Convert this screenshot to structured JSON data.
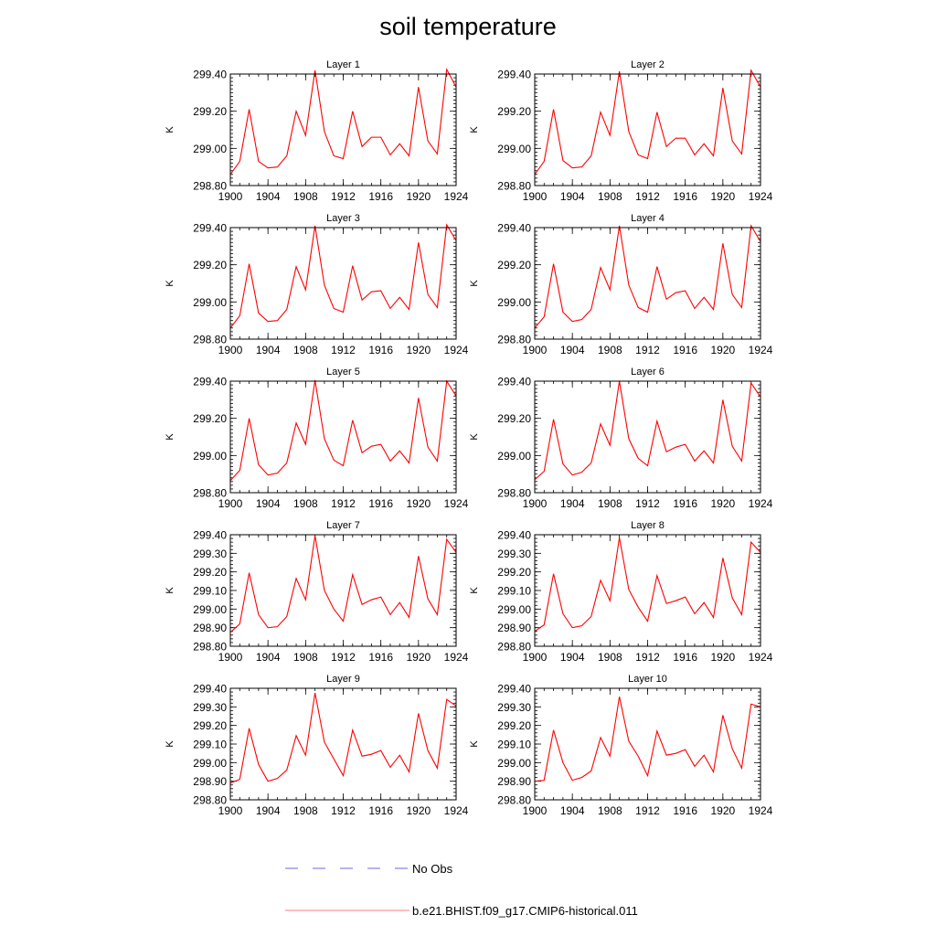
{
  "figure": {
    "title": "soil temperature"
  },
  "legend": [
    {
      "label": "No Obs",
      "color": "#6b6bd6",
      "style": "dashed"
    },
    {
      "label": "b.e21.BHIST.f09_g17.CMIP6-historical.011",
      "color": "#ff7f7f",
      "style": "solid"
    }
  ],
  "chart_data": [
    {
      "type": "line",
      "title": "Layer 1",
      "ylabel": "K",
      "xlim": [
        1900,
        1924
      ],
      "ylim": [
        298.8,
        299.4
      ],
      "xticks": [
        "1900",
        "1904",
        "1908",
        "1912",
        "1916",
        "1920",
        "1924"
      ],
      "yticks": [
        "298.80",
        "299.00",
        "299.20",
        "299.40"
      ],
      "color": "#ff0000",
      "x": [
        1900,
        1901,
        1902,
        1903,
        1904,
        1905,
        1906,
        1907,
        1908,
        1909,
        1910,
        1911,
        1912,
        1913,
        1914,
        1915,
        1916,
        1917,
        1918,
        1919,
        1920,
        1921,
        1922,
        1923,
        1924
      ],
      "series": [
        {
          "values": [
            298.86,
            298.93,
            299.21,
            298.93,
            298.895,
            298.9,
            298.96,
            299.2,
            299.07,
            299.42,
            299.09,
            298.96,
            298.945,
            299.2,
            299.01,
            299.06,
            299.06,
            298.965,
            299.025,
            298.96,
            299.33,
            299.04,
            298.97,
            299.425,
            299.33
          ]
        }
      ]
    },
    {
      "type": "line",
      "title": "Layer 2",
      "ylabel": "K",
      "xlim": [
        1900,
        1924
      ],
      "ylim": [
        298.8,
        299.4
      ],
      "xticks": [
        "1900",
        "1904",
        "1908",
        "1912",
        "1916",
        "1920",
        "1924"
      ],
      "yticks": [
        "298.80",
        "299.00",
        "299.20",
        "299.40"
      ],
      "color": "#ff0000",
      "x": [
        1900,
        1901,
        1902,
        1903,
        1904,
        1905,
        1906,
        1907,
        1908,
        1909,
        1910,
        1911,
        1912,
        1913,
        1914,
        1915,
        1916,
        1917,
        1918,
        1919,
        1920,
        1921,
        1922,
        1923,
        1924
      ],
      "series": [
        {
          "values": [
            298.86,
            298.93,
            299.21,
            298.935,
            298.895,
            298.9,
            298.96,
            299.195,
            299.07,
            299.415,
            299.09,
            298.965,
            298.945,
            299.195,
            299.01,
            299.055,
            299.055,
            298.965,
            299.025,
            298.96,
            299.325,
            299.04,
            298.97,
            299.42,
            299.33
          ]
        }
      ]
    },
    {
      "type": "line",
      "title": "Layer 3",
      "ylabel": "K",
      "xlim": [
        1900,
        1924
      ],
      "ylim": [
        298.8,
        299.4
      ],
      "xticks": [
        "1900",
        "1904",
        "1908",
        "1912",
        "1916",
        "1920",
        "1924"
      ],
      "yticks": [
        "298.80",
        "299.00",
        "299.20",
        "299.40"
      ],
      "color": "#ff0000",
      "x": [
        1900,
        1901,
        1902,
        1903,
        1904,
        1905,
        1906,
        1907,
        1908,
        1909,
        1910,
        1911,
        1912,
        1913,
        1914,
        1915,
        1916,
        1917,
        1918,
        1919,
        1920,
        1921,
        1922,
        1923,
        1924
      ],
      "series": [
        {
          "values": [
            298.86,
            298.925,
            299.205,
            298.94,
            298.895,
            298.9,
            298.96,
            299.19,
            299.065,
            299.41,
            299.09,
            298.965,
            298.945,
            299.195,
            299.01,
            299.055,
            299.06,
            298.965,
            299.025,
            298.96,
            299.32,
            299.04,
            298.97,
            299.415,
            299.33
          ]
        }
      ]
    },
    {
      "type": "line",
      "title": "Layer 4",
      "ylabel": "K",
      "xlim": [
        1900,
        1924
      ],
      "ylim": [
        298.8,
        299.4
      ],
      "xticks": [
        "1900",
        "1904",
        "1908",
        "1912",
        "1916",
        "1920",
        "1924"
      ],
      "yticks": [
        "298.80",
        "299.00",
        "299.20",
        "299.40"
      ],
      "color": "#ff0000",
      "x": [
        1900,
        1901,
        1902,
        1903,
        1904,
        1905,
        1906,
        1907,
        1908,
        1909,
        1910,
        1911,
        1912,
        1913,
        1914,
        1915,
        1916,
        1917,
        1918,
        1919,
        1920,
        1921,
        1922,
        1923,
        1924
      ],
      "series": [
        {
          "values": [
            298.86,
            298.92,
            299.205,
            298.945,
            298.895,
            298.905,
            298.96,
            299.185,
            299.065,
            299.41,
            299.09,
            298.97,
            298.945,
            299.19,
            299.015,
            299.05,
            299.06,
            298.965,
            299.025,
            298.96,
            299.315,
            299.04,
            298.97,
            299.41,
            299.325
          ]
        }
      ]
    },
    {
      "type": "line",
      "title": "Layer 5",
      "ylabel": "K",
      "xlim": [
        1900,
        1924
      ],
      "ylim": [
        298.8,
        299.4
      ],
      "xticks": [
        "1900",
        "1904",
        "1908",
        "1912",
        "1916",
        "1920",
        "1924"
      ],
      "yticks": [
        "298.80",
        "299.00",
        "299.20",
        "299.40"
      ],
      "color": "#ff0000",
      "x": [
        1900,
        1901,
        1902,
        1903,
        1904,
        1905,
        1906,
        1907,
        1908,
        1909,
        1910,
        1911,
        1912,
        1913,
        1914,
        1915,
        1916,
        1917,
        1918,
        1919,
        1920,
        1921,
        1922,
        1923,
        1924
      ],
      "series": [
        {
          "values": [
            298.865,
            298.92,
            299.2,
            298.95,
            298.895,
            298.905,
            298.96,
            299.175,
            299.06,
            299.405,
            299.09,
            298.975,
            298.945,
            299.19,
            299.015,
            299.05,
            299.06,
            298.97,
            299.025,
            298.96,
            299.31,
            299.045,
            298.97,
            299.4,
            299.32
          ]
        }
      ]
    },
    {
      "type": "line",
      "title": "Layer 6",
      "ylabel": "K",
      "xlim": [
        1900,
        1924
      ],
      "ylim": [
        298.8,
        299.4
      ],
      "xticks": [
        "1900",
        "1904",
        "1908",
        "1912",
        "1916",
        "1920",
        "1924"
      ],
      "yticks": [
        "298.80",
        "299.00",
        "299.20",
        "299.40"
      ],
      "color": "#ff0000",
      "x": [
        1900,
        1901,
        1902,
        1903,
        1904,
        1905,
        1906,
        1907,
        1908,
        1909,
        1910,
        1911,
        1912,
        1913,
        1914,
        1915,
        1916,
        1917,
        1918,
        1919,
        1920,
        1921,
        1922,
        1923,
        1924
      ],
      "series": [
        {
          "values": [
            298.87,
            298.915,
            299.195,
            298.955,
            298.895,
            298.91,
            298.96,
            299.17,
            299.055,
            299.4,
            299.09,
            298.985,
            298.945,
            299.185,
            299.02,
            299.045,
            299.06,
            298.97,
            299.025,
            298.96,
            299.3,
            299.05,
            298.97,
            299.39,
            299.315
          ]
        }
      ]
    },
    {
      "type": "line",
      "title": "Layer 7",
      "ylabel": "K",
      "xlim": [
        1900,
        1924
      ],
      "ylim": [
        298.8,
        299.4
      ],
      "xticks": [
        "1900",
        "1904",
        "1908",
        "1912",
        "1916",
        "1920",
        "1924"
      ],
      "yticks": [
        "298.80",
        "298.90",
        "299.00",
        "299.10",
        "299.20",
        "299.30",
        "299.40"
      ],
      "color": "#ff0000",
      "x": [
        1900,
        1901,
        1902,
        1903,
        1904,
        1905,
        1906,
        1907,
        1908,
        1909,
        1910,
        1911,
        1912,
        1913,
        1914,
        1915,
        1916,
        1917,
        1918,
        1919,
        1920,
        1921,
        1922,
        1923,
        1924
      ],
      "series": [
        {
          "values": [
            298.875,
            298.92,
            299.195,
            298.97,
            298.9,
            298.905,
            298.96,
            299.165,
            299.05,
            299.395,
            299.1,
            299.0,
            298.935,
            299.185,
            299.025,
            299.05,
            299.065,
            298.97,
            299.035,
            298.955,
            299.285,
            299.055,
            298.97,
            299.375,
            299.305
          ]
        }
      ]
    },
    {
      "type": "line",
      "title": "Layer 8",
      "ylabel": "K",
      "xlim": [
        1900,
        1924
      ],
      "ylim": [
        298.8,
        299.4
      ],
      "xticks": [
        "1900",
        "1904",
        "1908",
        "1912",
        "1916",
        "1920",
        "1924"
      ],
      "yticks": [
        "298.80",
        "298.90",
        "299.00",
        "299.10",
        "299.20",
        "299.30",
        "299.40"
      ],
      "color": "#ff0000",
      "x": [
        1900,
        1901,
        1902,
        1903,
        1904,
        1905,
        1906,
        1907,
        1908,
        1909,
        1910,
        1911,
        1912,
        1913,
        1914,
        1915,
        1916,
        1917,
        1918,
        1919,
        1920,
        1921,
        1922,
        1923,
        1924
      ],
      "series": [
        {
          "values": [
            298.88,
            298.915,
            299.19,
            298.975,
            298.9,
            298.91,
            298.96,
            299.155,
            299.045,
            299.385,
            299.105,
            299.01,
            298.935,
            299.18,
            299.03,
            299.045,
            299.065,
            298.975,
            299.035,
            298.955,
            299.275,
            299.06,
            298.97,
            299.36,
            299.305
          ]
        }
      ]
    },
    {
      "type": "line",
      "title": "Layer 9",
      "ylabel": "K",
      "xlim": [
        1900,
        1924
      ],
      "ylim": [
        298.8,
        299.4
      ],
      "xticks": [
        "1900",
        "1904",
        "1908",
        "1912",
        "1916",
        "1920",
        "1924"
      ],
      "yticks": [
        "298.80",
        "298.90",
        "299.00",
        "299.10",
        "299.20",
        "299.30",
        "299.40"
      ],
      "color": "#ff0000",
      "x": [
        1900,
        1901,
        1902,
        1903,
        1904,
        1905,
        1906,
        1907,
        1908,
        1909,
        1910,
        1911,
        1912,
        1913,
        1914,
        1915,
        1916,
        1917,
        1918,
        1919,
        1920,
        1921,
        1922,
        1923,
        1924
      ],
      "series": [
        {
          "values": [
            298.89,
            298.91,
            299.185,
            298.99,
            298.9,
            298.915,
            298.96,
            299.145,
            299.04,
            299.375,
            299.11,
            299.02,
            298.93,
            299.175,
            299.035,
            299.045,
            299.065,
            298.975,
            299.04,
            298.95,
            299.265,
            299.065,
            298.97,
            299.34,
            299.305
          ]
        }
      ]
    },
    {
      "type": "line",
      "title": "Layer 10",
      "ylabel": "K",
      "xlim": [
        1900,
        1924
      ],
      "ylim": [
        298.8,
        299.4
      ],
      "xticks": [
        "1900",
        "1904",
        "1908",
        "1912",
        "1916",
        "1920",
        "1924"
      ],
      "yticks": [
        "298.80",
        "298.90",
        "299.00",
        "299.10",
        "299.20",
        "299.30",
        "299.40"
      ],
      "color": "#ff0000",
      "x": [
        1900,
        1901,
        1902,
        1903,
        1904,
        1905,
        1906,
        1907,
        1908,
        1909,
        1910,
        1911,
        1912,
        1913,
        1914,
        1915,
        1916,
        1917,
        1918,
        1919,
        1920,
        1921,
        1922,
        1923,
        1924
      ],
      "series": [
        {
          "values": [
            298.9,
            298.905,
            299.175,
            299.0,
            298.905,
            298.92,
            298.955,
            299.135,
            299.035,
            299.355,
            299.115,
            299.035,
            298.93,
            299.17,
            299.04,
            299.05,
            299.07,
            298.98,
            299.04,
            298.95,
            299.255,
            299.075,
            298.97,
            299.315,
            299.3
          ]
        }
      ]
    }
  ]
}
